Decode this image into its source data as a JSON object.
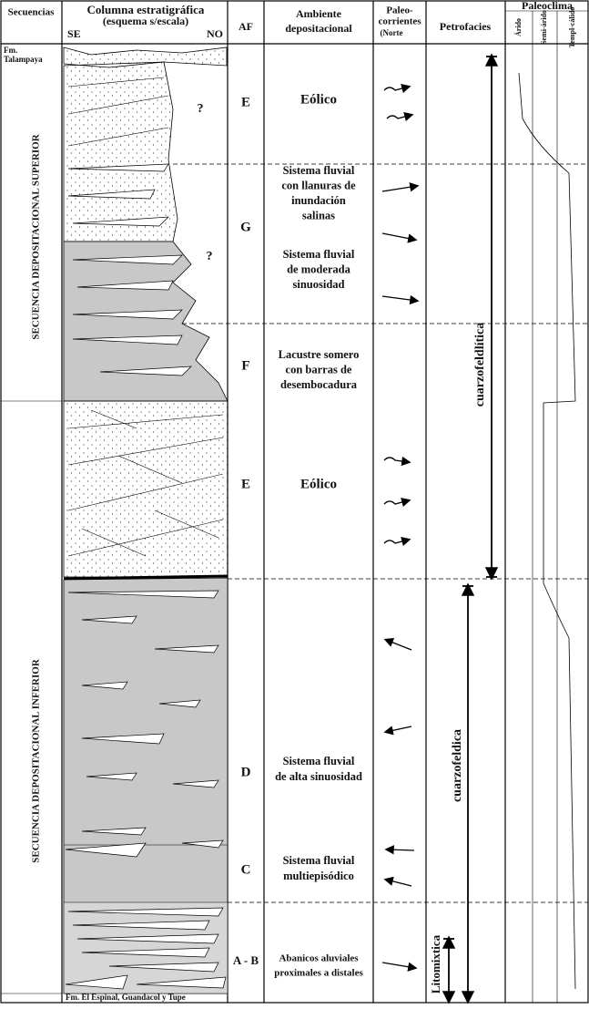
{
  "header": {
    "secuencias": "Secuencias",
    "columna": "Columna estratigráfica",
    "columna_sub": "(esquema s/escala)",
    "se": "SE",
    "no": "NO",
    "af": "AF",
    "ambiente": [
      "Ambiente",
      "depositacional"
    ],
    "paleocorrientes": [
      "Paleo-",
      "corrientes",
      "(Norte"
    ],
    "petrofacies": "Petrofacies",
    "paleoclima": "Paleoclima",
    "clima": [
      "Árido",
      "Semi-árido",
      "Templ-cálido"
    ]
  },
  "formations": {
    "top": [
      "Fm.",
      "Talampaya"
    ],
    "bottom": "Fm. El Espinal, Guandacol y Tupe"
  },
  "sequences": [
    "SECUENCIA DEPOSITACIONAL  SUPERIOR",
    "SECUENCIA DEPOSITACIONAL INFERIOR"
  ],
  "question_marks": [
    "?",
    "?"
  ],
  "units": [
    {
      "af": "E",
      "ambiente": [
        [
          "Eólico"
        ]
      ]
    },
    {
      "af": "G",
      "ambiente": [
        [
          "Sistema fluvial",
          "con llanuras de",
          "inundación",
          "salinas"
        ],
        [
          "Sistema fluvial",
          "de moderada",
          "sinuosidad"
        ]
      ]
    },
    {
      "af": "F",
      "ambiente": [
        [
          "Lacustre somero",
          "con barras de",
          "desembocadura"
        ]
      ]
    },
    {
      "af": "E",
      "ambiente": [
        [
          "Eólico"
        ]
      ]
    },
    {
      "af": "D",
      "ambiente": [
        [
          "Sistema fluvial",
          "de alta sinuosidad"
        ]
      ]
    },
    {
      "af": "C",
      "ambiente": [
        [
          "Sistema fluvial",
          "multiepisódico"
        ]
      ]
    },
    {
      "af": "A - B",
      "ambiente": [
        [
          "Abanicos aluviales",
          "proximales a distales"
        ]
      ]
    }
  ],
  "petrofacies": [
    "cuarzofeldlítica",
    "cuarzofeldica",
    "Litomixtica"
  ]
}
